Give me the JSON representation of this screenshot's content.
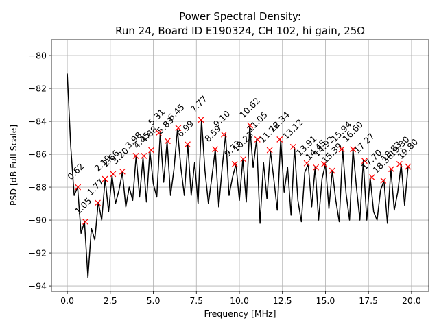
{
  "chart_data": {
    "type": "line",
    "title": "Power Spectral Density:",
    "subtitle": "Run 24, Board ID E190324, CH 102, hi gain, 25Ω",
    "x_label": "Frequency [MHz]",
    "y_label": "PSD [dB Full Scale]",
    "xlim": [
      -0.92,
      21.0
    ],
    "ylim": [
      -94.33,
      -79.04
    ],
    "xticks": [
      {
        "value": 0,
        "label": "0.0"
      },
      2.5,
      {
        "value": 5,
        "label": "5.0"
      },
      7.5,
      {
        "value": 10,
        "label": "10.0"
      },
      12.5,
      {
        "value": 15,
        "label": "15.0"
      },
      17.5,
      {
        "value": 20,
        "label": "20.0"
      }
    ],
    "yticks": [
      {
        "value": -94,
        "label": "−94"
      },
      {
        "value": -92,
        "label": "−92"
      },
      {
        "value": -90,
        "label": "−90"
      },
      {
        "value": -88,
        "label": "−88"
      },
      {
        "value": -86,
        "label": "−86"
      },
      {
        "value": -84,
        "label": "−84"
      },
      {
        "value": -82,
        "label": "−82"
      },
      {
        "value": -80,
        "label": "−80"
      }
    ],
    "grid": true,
    "series": [
      {
        "color": "#000000",
        "x": [
          0.0,
          0.2,
          0.4,
          0.6,
          0.8,
          1.0,
          1.2,
          1.4,
          1.6,
          1.8,
          2.0,
          2.2,
          2.4,
          2.6,
          2.8,
          3.0,
          3.2,
          3.4,
          3.6,
          3.8,
          4.0,
          4.2,
          4.4,
          4.6,
          4.8,
          5.0,
          5.2,
          5.4,
          5.6,
          5.8,
          6.0,
          6.2,
          6.4,
          6.6,
          6.8,
          7.0,
          7.2,
          7.4,
          7.6,
          7.8,
          8.0,
          8.2,
          8.4,
          8.6,
          8.8,
          9.0,
          9.2,
          9.4,
          9.6,
          9.8,
          10.0,
          10.2,
          10.4,
          10.6,
          10.8,
          11.0,
          11.2,
          11.4,
          11.6,
          11.8,
          12.0,
          12.2,
          12.4,
          12.6,
          12.8,
          13.0,
          13.2,
          13.4,
          13.6,
          13.8,
          14.0,
          14.2,
          14.4,
          14.6,
          14.8,
          15.0,
          15.2,
          15.4,
          15.6,
          15.8,
          16.0,
          16.2,
          16.4,
          16.6,
          16.8,
          17.0,
          17.2,
          17.4,
          17.6,
          17.8,
          18.0,
          18.2,
          18.4,
          18.6,
          18.8,
          19.0,
          19.2,
          19.4,
          19.6,
          19.8
        ],
        "values": [
          -81.1,
          -85.5,
          -88.5,
          -88.0,
          -90.8,
          -90.1,
          -93.5,
          -90.5,
          -91.2,
          -88.9,
          -90.0,
          -87.5,
          -89.5,
          -87.3,
          -89.0,
          -88.2,
          -87.1,
          -89.2,
          -88.0,
          -88.8,
          -86.1,
          -88.6,
          -86.2,
          -88.9,
          -85.8,
          -87.8,
          -88.6,
          -84.7,
          -87.7,
          -85.2,
          -88.5,
          -86.9,
          -84.5,
          -86.8,
          -88.5,
          -85.4,
          -88.5,
          -86.5,
          -89.0,
          -83.9,
          -87.0,
          -89.0,
          -87.4,
          -85.7,
          -89.2,
          -86.8,
          -84.8,
          -88.5,
          -87.4,
          -86.6,
          -88.8,
          -86.3,
          -88.9,
          -84.25,
          -86.8,
          -85.1,
          -90.2,
          -86.5,
          -88.7,
          -85.8,
          -87.5,
          -89.4,
          -85.1,
          -88.3,
          -86.8,
          -89.7,
          -85.6,
          -88.8,
          -90.1,
          -87.1,
          -86.6,
          -89.2,
          -86.8,
          -90.0,
          -87.5,
          -86.6,
          -89.3,
          -87.0,
          -88.8,
          -90.1,
          -85.7,
          -88.4,
          -90.0,
          -85.7,
          -88.0,
          -90.0,
          -86.4,
          -90.0,
          -87.4,
          -89.5,
          -90.0,
          -88.2,
          -87.6,
          -90.2,
          -86.9,
          -89.4,
          -88.3,
          -86.6,
          -89.1,
          -86.75
        ]
      },
      {
        "color": "#ff0000",
        "marker": "x",
        "x": [
          0.62,
          1.05,
          1.77,
          2.19,
          2.66,
          3.2,
          3.98,
          4.45,
          4.88,
          5.31,
          5.83,
          6.45,
          6.99,
          7.77,
          8.59,
          9.1,
          9.73,
          10.23,
          10.62,
          11.05,
          11.76,
          12.34,
          13.12,
          13.91,
          14.45,
          14.92,
          15.39,
          15.94,
          16.6,
          17.27,
          17.7,
          18.36,
          18.83,
          19.3,
          19.8
        ],
        "values": [
          -88.0,
          -90.1,
          -88.95,
          -87.5,
          -87.2,
          -87.05,
          -86.1,
          -86.1,
          -85.75,
          -84.7,
          -85.2,
          -84.4,
          -85.4,
          -83.9,
          -85.7,
          -84.8,
          -86.6,
          -86.3,
          -84.25,
          -85.1,
          -85.75,
          -85.1,
          -85.55,
          -86.55,
          -86.8,
          -86.6,
          -87.0,
          -85.7,
          -85.7,
          -86.4,
          -87.4,
          -87.6,
          -86.9,
          -86.6,
          -86.75
        ],
        "value_labels": [
          "0.62",
          "1.05",
          "1.77",
          "2.19",
          "2.66",
          "3.20",
          "3.98",
          "4.45",
          "4.88",
          "5.31",
          "5.83",
          "6.45",
          "6.99",
          "7.77",
          "8.59",
          "9.10",
          "9.73",
          "10.23",
          "10.62",
          "11.05",
          "11.76",
          "12.34",
          "13.12",
          "13.91",
          "14.45",
          "14.92",
          "15.39",
          "15.94",
          "16.60",
          "17.27",
          "17.70",
          "18.36",
          "18.83",
          "19.30",
          "19.80"
        ]
      }
    ]
  }
}
